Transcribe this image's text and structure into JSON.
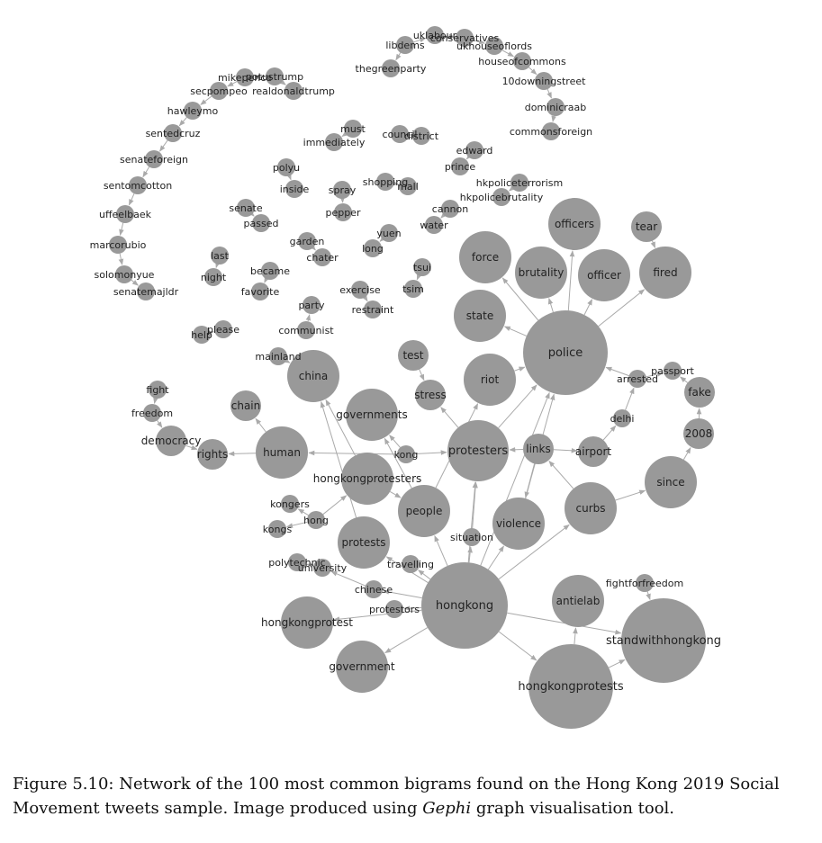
{
  "graph": {
    "node_color": "#999999",
    "edge_color": "#aaaaaa",
    "label_color": "#222222",
    "nodes": [
      {
        "id": "uklabour",
        "label": "uklabour",
        "size": 1
      },
      {
        "id": "conservatives",
        "label": "conservatives",
        "size": 1
      },
      {
        "id": "ukhouseoflords",
        "label": "ukhouseoflords",
        "size": 1
      },
      {
        "id": "libdems",
        "label": "libdems",
        "size": 1
      },
      {
        "id": "thegreenparty",
        "label": "thegreenparty",
        "size": 1
      },
      {
        "id": "houseofcommons",
        "label": "houseofcommons",
        "size": 1
      },
      {
        "id": "10downingstreet",
        "label": "10downingstreet",
        "size": 1
      },
      {
        "id": "dominicraab",
        "label": "dominicraab",
        "size": 1
      },
      {
        "id": "commonsforeign",
        "label": "commonsforeign",
        "size": 1
      },
      {
        "id": "mikepence",
        "label": "mikepence",
        "size": 1
      },
      {
        "id": "potustrump",
        "label": "potustrump",
        "size": 1
      },
      {
        "id": "realdonaldtrump",
        "label": "realdonaldtrump",
        "size": 1
      },
      {
        "id": "secpompeo",
        "label": "secpompeo",
        "size": 1
      },
      {
        "id": "hawleymo",
        "label": "hawleymo",
        "size": 1
      },
      {
        "id": "sentedcruz",
        "label": "sentedcruz",
        "size": 1
      },
      {
        "id": "senateforeign",
        "label": "senateforeign",
        "size": 1
      },
      {
        "id": "sentomcotton",
        "label": "sentomcotton",
        "size": 1
      },
      {
        "id": "uffeelbaek",
        "label": "uffeelbaek",
        "size": 1
      },
      {
        "id": "marcorubio",
        "label": "marcorubio",
        "size": 1
      },
      {
        "id": "solomonyue",
        "label": "solomonyue",
        "size": 1
      },
      {
        "id": "senatemajldr",
        "label": "senatemajldr",
        "size": 1
      },
      {
        "id": "must",
        "label": "must",
        "size": 1
      },
      {
        "id": "immediately",
        "label": "immediately",
        "size": 1
      },
      {
        "id": "council",
        "label": "council",
        "size": 1
      },
      {
        "id": "district",
        "label": "district",
        "size": 1
      },
      {
        "id": "edward",
        "label": "edward",
        "size": 1
      },
      {
        "id": "prince",
        "label": "prince",
        "size": 1
      },
      {
        "id": "polyu",
        "label": "polyu",
        "size": 1
      },
      {
        "id": "inside",
        "label": "inside",
        "size": 1
      },
      {
        "id": "shopping",
        "label": "shopping",
        "size": 1
      },
      {
        "id": "mall",
        "label": "mall",
        "size": 1
      },
      {
        "id": "hkpoliceterrorism",
        "label": "hkpoliceterrorism",
        "size": 1
      },
      {
        "id": "hkpolicebrutality",
        "label": "hkpolicebrutality",
        "size": 1
      },
      {
        "id": "spray",
        "label": "spray",
        "size": 1
      },
      {
        "id": "pepper",
        "label": "pepper",
        "size": 1
      },
      {
        "id": "senate",
        "label": "senate",
        "size": 1
      },
      {
        "id": "passed",
        "label": "passed",
        "size": 1
      },
      {
        "id": "cannon",
        "label": "cannon",
        "size": 1
      },
      {
        "id": "water",
        "label": "water",
        "size": 1
      },
      {
        "id": "yuen",
        "label": "yuen",
        "size": 1
      },
      {
        "id": "long",
        "label": "long",
        "size": 1
      },
      {
        "id": "garden",
        "label": "garden",
        "size": 1
      },
      {
        "id": "chater",
        "label": "chater",
        "size": 1
      },
      {
        "id": "last",
        "label": "last",
        "size": 1
      },
      {
        "id": "night",
        "label": "night",
        "size": 1
      },
      {
        "id": "tsui",
        "label": "tsui",
        "size": 1
      },
      {
        "id": "tsim",
        "label": "tsim",
        "size": 1
      },
      {
        "id": "became",
        "label": "became",
        "size": 1
      },
      {
        "id": "favorite",
        "label": "favorite",
        "size": 1
      },
      {
        "id": "exercise",
        "label": "exercise",
        "size": 1
      },
      {
        "id": "restraint",
        "label": "restraint",
        "size": 1
      },
      {
        "id": "party",
        "label": "party",
        "size": 1
      },
      {
        "id": "communist",
        "label": "communist",
        "size": 1
      },
      {
        "id": "help",
        "label": "help",
        "size": 1
      },
      {
        "id": "please",
        "label": "please",
        "size": 1
      },
      {
        "id": "mainland",
        "label": "mainland",
        "size": 1
      },
      {
        "id": "officers",
        "label": "officers",
        "size": 3
      },
      {
        "id": "tear",
        "label": "tear",
        "size": 2
      },
      {
        "id": "force",
        "label": "force",
        "size": 3
      },
      {
        "id": "brutality",
        "label": "brutality",
        "size": 3
      },
      {
        "id": "officer",
        "label": "officer",
        "size": 3
      },
      {
        "id": "fired",
        "label": "fired",
        "size": 3
      },
      {
        "id": "state",
        "label": "state",
        "size": 3
      },
      {
        "id": "police",
        "label": "police",
        "size": 5
      },
      {
        "id": "passport",
        "label": "passport",
        "size": 1
      },
      {
        "id": "arrested",
        "label": "arrested",
        "size": 1
      },
      {
        "id": "fake",
        "label": "fake",
        "size": 2
      },
      {
        "id": "china",
        "label": "china",
        "size": 3
      },
      {
        "id": "test",
        "label": "test",
        "size": 2
      },
      {
        "id": "riot",
        "label": "riot",
        "size": 3
      },
      {
        "id": "stress",
        "label": "stress",
        "size": 2
      },
      {
        "id": "fight",
        "label": "fight",
        "size": 1
      },
      {
        "id": "chain",
        "label": "chain",
        "size": 2
      },
      {
        "id": "governments",
        "label": "governments",
        "size": 3
      },
      {
        "id": "delhi",
        "label": "delhi",
        "size": 1
      },
      {
        "id": "freedom",
        "label": "freedom",
        "size": 1
      },
      {
        "id": "2008",
        "label": "2008",
        "size": 2
      },
      {
        "id": "democracy",
        "label": "democracy",
        "size": 2
      },
      {
        "id": "rights",
        "label": "rights",
        "size": 2
      },
      {
        "id": "human",
        "label": "human",
        "size": 3
      },
      {
        "id": "kong",
        "label": "kong",
        "size": 1
      },
      {
        "id": "protesters",
        "label": "protesters",
        "size": 4
      },
      {
        "id": "links",
        "label": "links",
        "size": 2
      },
      {
        "id": "airport",
        "label": "airport",
        "size": 2
      },
      {
        "id": "hongkongprotesters",
        "label": "hongkongprotesters",
        "size": 3
      },
      {
        "id": "since",
        "label": "since",
        "size": 3
      },
      {
        "id": "kongers",
        "label": "kongers",
        "size": 1
      },
      {
        "id": "people",
        "label": "people",
        "size": 3
      },
      {
        "id": "curbs",
        "label": "curbs",
        "size": 3
      },
      {
        "id": "hong",
        "label": "hong",
        "size": 1
      },
      {
        "id": "violence",
        "label": "violence",
        "size": 3
      },
      {
        "id": "kongs",
        "label": "kongs",
        "size": 1
      },
      {
        "id": "situation",
        "label": "situation",
        "size": 1
      },
      {
        "id": "protests",
        "label": "protests",
        "size": 3
      },
      {
        "id": "polytechnic",
        "label": "polytechnic",
        "size": 1
      },
      {
        "id": "university",
        "label": "university",
        "size": 1
      },
      {
        "id": "travelling",
        "label": "travelling",
        "size": 1
      },
      {
        "id": "fightforfreedom",
        "label": "fightforfreedom",
        "size": 1
      },
      {
        "id": "chinese",
        "label": "chinese",
        "size": 1
      },
      {
        "id": "antielab",
        "label": "antielab",
        "size": 3
      },
      {
        "id": "hongkong",
        "label": "hongkong",
        "size": 6
      },
      {
        "id": "protestors",
        "label": "protestors",
        "size": 1
      },
      {
        "id": "hongkongprotest",
        "label": "hongkongprotest",
        "size": 3
      },
      {
        "id": "standwithhongkong",
        "label": "standwithhongkong",
        "size": 5
      },
      {
        "id": "government",
        "label": "government",
        "size": 3
      },
      {
        "id": "hongkongprotests",
        "label": "hongkongprotests",
        "size": 5
      }
    ],
    "edges": [
      [
        "uklabour",
        "conservatives"
      ],
      [
        "libdems",
        "uklabour"
      ],
      [
        "libdems",
        "thegreenparty"
      ],
      [
        "conservatives",
        "ukhouseoflords"
      ],
      [
        "ukhouseoflords",
        "houseofcommons"
      ],
      [
        "houseofcommons",
        "10downingstreet"
      ],
      [
        "10downingstreet",
        "dominicraab"
      ],
      [
        "dominicraab",
        "commonsforeign"
      ],
      [
        "potustrump",
        "mikepence"
      ],
      [
        "potustrump",
        "realdonaldtrump"
      ],
      [
        "mikepence",
        "secpompeo"
      ],
      [
        "secpompeo",
        "hawleymo"
      ],
      [
        "hawleymo",
        "sentedcruz"
      ],
      [
        "sentedcruz",
        "senateforeign"
      ],
      [
        "senateforeign",
        "sentomcotton"
      ],
      [
        "sentomcotton",
        "uffeelbaek"
      ],
      [
        "uffeelbaek",
        "marcorubio"
      ],
      [
        "marcorubio",
        "solomonyue"
      ],
      [
        "solomonyue",
        "senatemajldr"
      ],
      [
        "must",
        "immediately"
      ],
      [
        "council",
        "district"
      ],
      [
        "edward",
        "prince"
      ],
      [
        "polyu",
        "inside"
      ],
      [
        "shopping",
        "mall"
      ],
      [
        "hkpoliceterrorism",
        "hkpolicebrutality"
      ],
      [
        "spray",
        "pepper"
      ],
      [
        "senate",
        "passed"
      ],
      [
        "cannon",
        "water"
      ],
      [
        "yuen",
        "long"
      ],
      [
        "garden",
        "chater"
      ],
      [
        "last",
        "night"
      ],
      [
        "tsui",
        "tsim"
      ],
      [
        "became",
        "favorite"
      ],
      [
        "exercise",
        "restraint"
      ],
      [
        "communist",
        "party"
      ],
      [
        "help",
        "please"
      ],
      [
        "mainland",
        "china"
      ],
      [
        "tear",
        "fired"
      ],
      [
        "police",
        "officers"
      ],
      [
        "police",
        "force"
      ],
      [
        "police",
        "brutality"
      ],
      [
        "police",
        "officer"
      ],
      [
        "police",
        "fired"
      ],
      [
        "police",
        "state"
      ],
      [
        "arrested",
        "police"
      ],
      [
        "arrested",
        "passport"
      ],
      [
        "fake",
        "passport"
      ],
      [
        "2008",
        "fake"
      ],
      [
        "since",
        "2008"
      ],
      [
        "riot",
        "police"
      ],
      [
        "protesters",
        "police"
      ],
      [
        "violence",
        "police"
      ],
      [
        "hongkong",
        "police"
      ],
      [
        "test",
        "stress"
      ],
      [
        "protesters",
        "stress"
      ],
      [
        "delhi",
        "arrested"
      ],
      [
        "airport",
        "delhi"
      ],
      [
        "links",
        "airport"
      ],
      [
        "links",
        "protesters"
      ],
      [
        "links",
        "violence"
      ],
      [
        "curbs",
        "links"
      ],
      [
        "curbs",
        "since"
      ],
      [
        "hongkong",
        "curbs"
      ],
      [
        "fight",
        "freedom"
      ],
      [
        "freedom",
        "democracy"
      ],
      [
        "democracy",
        "rights"
      ],
      [
        "human",
        "rights"
      ],
      [
        "human",
        "chain"
      ],
      [
        "kong",
        "human"
      ],
      [
        "kong",
        "protesters"
      ],
      [
        "kong",
        "governments"
      ],
      [
        "hongkongprotesters",
        "china"
      ],
      [
        "hongkongprotesters",
        "people"
      ],
      [
        "hong",
        "kongers"
      ],
      [
        "hong",
        "kongs"
      ],
      [
        "hong",
        "hongkongprotesters"
      ],
      [
        "people",
        "governments"
      ],
      [
        "people",
        "riot"
      ],
      [
        "hongkong",
        "people"
      ],
      [
        "hongkong",
        "protesters"
      ],
      [
        "situation",
        "protesters"
      ],
      [
        "hongkong",
        "situation"
      ],
      [
        "hongkong",
        "violence"
      ],
      [
        "hongkong",
        "protests"
      ],
      [
        "protests",
        "china"
      ],
      [
        "university",
        "polytechnic"
      ],
      [
        "chinese",
        "university"
      ],
      [
        "hongkong",
        "travelling"
      ],
      [
        "hongkong",
        "chinese"
      ],
      [
        "hongkong",
        "protestors"
      ],
      [
        "hongkong",
        "hongkongprotest"
      ],
      [
        "hongkong",
        "government"
      ],
      [
        "hongkong",
        "standwithhongkong"
      ],
      [
        "hongkong",
        "hongkongprotests"
      ],
      [
        "hongkongprotests",
        "antielab"
      ],
      [
        "hongkongprotests",
        "standwithhongkong"
      ],
      [
        "fightforfreedom",
        "standwithhongkong"
      ]
    ]
  },
  "caption": {
    "text": "Figure 5.10: Network of the 100 most common bigrams found on the Hong Kong 2019 Social Movement tweets sample. Image produced using ",
    "tool": "Gephi",
    "suffix": " graph visualisation tool."
  }
}
